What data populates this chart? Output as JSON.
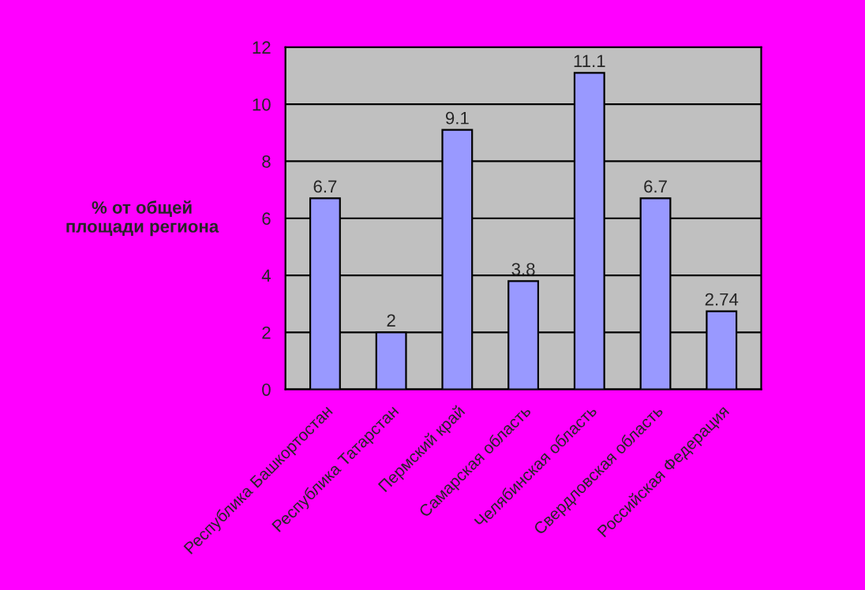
{
  "chart_data": {
    "type": "bar",
    "ylabel": "% от общей\nплощади региона",
    "categories": [
      "Республика Башкортостан",
      "Республика Татарстан",
      "Пермский край",
      "Самарская область",
      "Челябинская область",
      "Свердловская область",
      "Российская Федерация"
    ],
    "values": [
      6.7,
      2,
      9.1,
      3.8,
      11.1,
      6.7,
      2.74
    ],
    "value_labels": [
      "6.7",
      "2",
      "9.1",
      "3.8",
      "11.1",
      "6.7",
      "2.74"
    ],
    "color": "#9999ff",
    "ylim": [
      0,
      12
    ],
    "yticks": [
      0,
      2,
      4,
      6,
      8,
      10,
      12
    ],
    "grid": "y"
  }
}
